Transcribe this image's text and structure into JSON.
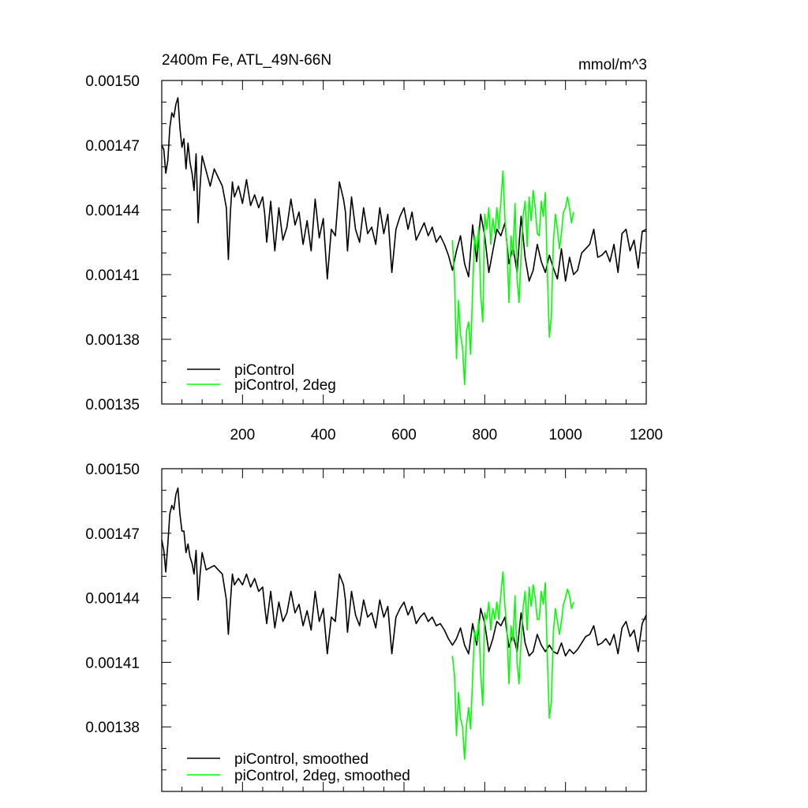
{
  "chart_data": [
    {
      "type": "line",
      "title": "2400m Fe, ATL_49N-66N",
      "units": "mmol/m^3",
      "xlim": [
        0,
        1200
      ],
      "ylim": [
        0.00135,
        0.0015
      ],
      "xticks": [
        200,
        400,
        600,
        800,
        1000,
        1200
      ],
      "xtick_labels": [
        "200",
        "400",
        "600",
        "800",
        "1000",
        "1200"
      ],
      "yticks": [
        0.00135,
        0.00138,
        0.00141,
        0.00144,
        0.00147,
        0.0015
      ],
      "ytick_labels": [
        "0.00135",
        "0.00138",
        "0.00141",
        "0.00144",
        "0.00147",
        "0.00150"
      ],
      "legend_position": "bottom-left",
      "series": [
        {
          "name": "piControl",
          "color": "#000000",
          "x": [
            0,
            5,
            10,
            15,
            20,
            25,
            30,
            35,
            40,
            45,
            50,
            55,
            60,
            65,
            70,
            75,
            80,
            85,
            90,
            95,
            100,
            110,
            120,
            130,
            140,
            150,
            160,
            165,
            170,
            175,
            180,
            190,
            200,
            210,
            220,
            230,
            240,
            250,
            255,
            260,
            270,
            280,
            290,
            300,
            310,
            320,
            330,
            340,
            350,
            360,
            370,
            380,
            390,
            400,
            410,
            420,
            430,
            440,
            450,
            455,
            460,
            470,
            480,
            490,
            500,
            510,
            520,
            530,
            540,
            550,
            560,
            570,
            580,
            590,
            600,
            610,
            620,
            630,
            640,
            650,
            660,
            670,
            680,
            690,
            700,
            710,
            720,
            730,
            740,
            750,
            760,
            770,
            780,
            790,
            800,
            810,
            820,
            830,
            840,
            850,
            860,
            870,
            880,
            890,
            900,
            910,
            920,
            930,
            940,
            950,
            960,
            970,
            980,
            990,
            1000,
            1010,
            1020,
            1030,
            1040,
            1050,
            1060,
            1070,
            1080,
            1090,
            1100,
            1110,
            1120,
            1130,
            1140,
            1150,
            1160,
            1170,
            1180,
            1190,
            1200
          ],
          "y": [
            0.00147,
            0.001468,
            0.001457,
            0.001463,
            0.001478,
            0.001485,
            0.001483,
            0.001489,
            0.001492,
            0.001478,
            0.001469,
            0.001473,
            0.001459,
            0.001471,
            0.001462,
            0.001457,
            0.001449,
            0.001466,
            0.001434,
            0.001451,
            0.001465,
            0.001458,
            0.001451,
            0.001459,
            0.001455,
            0.001451,
            0.001441,
            0.001417,
            0.001439,
            0.001453,
            0.001446,
            0.001451,
            0.001443,
            0.001454,
            0.001442,
            0.001447,
            0.001441,
            0.001446,
            0.001438,
            0.001425,
            0.001444,
            0.001421,
            0.001441,
            0.001426,
            0.001432,
            0.001445,
            0.001433,
            0.001439,
            0.001424,
            0.001435,
            0.001421,
            0.001445,
            0.001427,
            0.001436,
            0.001408,
            0.001431,
            0.001428,
            0.001453,
            0.001445,
            0.001439,
            0.001421,
            0.001446,
            0.001431,
            0.001425,
            0.001441,
            0.001429,
            0.001432,
            0.001424,
            0.001441,
            0.001429,
            0.001438,
            0.001411,
            0.001431,
            0.001437,
            0.001441,
            0.001431,
            0.001439,
            0.001426,
            0.00143,
            0.001434,
            0.001428,
            0.001432,
            0.001425,
            0.001428,
            0.001424,
            0.001419,
            0.001412,
            0.001421,
            0.001428,
            0.001415,
            0.001409,
            0.001433,
            0.001416,
            0.001438,
            0.001428,
            0.001411,
            0.001421,
            0.001431,
            0.001428,
            0.001434,
            0.001415,
            0.001423,
            0.001411,
            0.001437,
            0.001418,
            0.001407,
            0.001412,
            0.001424,
            0.001416,
            0.001411,
            0.001419,
            0.001413,
            0.001408,
            0.001422,
            0.001407,
            0.001418,
            0.00141,
            0.001412,
            0.00142,
            0.001422,
            0.001424,
            0.001431,
            0.001418,
            0.001419,
            0.001421,
            0.001416,
            0.001424,
            0.001411,
            0.001429,
            0.001431,
            0.001421,
            0.001426,
            0.001413,
            0.00143,
            0.001431
          ]
        },
        {
          "name": "piControl, 2deg",
          "color": "#00ff00",
          "x": [
            720,
            725,
            730,
            735,
            740,
            745,
            750,
            755,
            760,
            765,
            770,
            775,
            780,
            785,
            790,
            795,
            800,
            805,
            810,
            815,
            820,
            825,
            830,
            835,
            840,
            845,
            850,
            855,
            860,
            865,
            870,
            875,
            880,
            885,
            890,
            895,
            900,
            905,
            910,
            915,
            920,
            925,
            930,
            935,
            940,
            945,
            950,
            955,
            960,
            965,
            970,
            975,
            980,
            985,
            990,
            995,
            1000,
            1005,
            1010,
            1015,
            1020
          ],
          "y": [
            0.001426,
            0.001408,
            0.001371,
            0.001398,
            0.001382,
            0.001376,
            0.001359,
            0.001384,
            0.001388,
            0.001373,
            0.001403,
            0.001428,
            0.001421,
            0.001432,
            0.001401,
            0.001388,
            0.001438,
            0.001431,
            0.001441,
            0.001424,
            0.001436,
            0.001429,
            0.001441,
            0.001431,
            0.001444,
            0.001458,
            0.001436,
            0.001424,
            0.001397,
            0.001428,
            0.001419,
            0.001443,
            0.001408,
            0.001397,
            0.001419,
            0.001437,
            0.001444,
            0.001423,
            0.001446,
            0.001435,
            0.001449,
            0.001441,
            0.001429,
            0.001428,
            0.001444,
            0.001437,
            0.001448,
            0.001412,
            0.001381,
            0.001391,
            0.001425,
            0.001438,
            0.001431,
            0.001422,
            0.001429,
            0.001439,
            0.001441,
            0.001446,
            0.001441,
            0.001434,
            0.001439
          ]
        }
      ]
    },
    {
      "type": "line",
      "xlim": [
        0,
        1200
      ],
      "ylim": [
        0.00135,
        0.0015
      ],
      "xticks": [
        200,
        400,
        600,
        800,
        1000,
        1200
      ],
      "yticks": [
        0.00138,
        0.00141,
        0.00144,
        0.00147,
        0.0015
      ],
      "ytick_labels": [
        "0.00138",
        "0.00141",
        "0.00144",
        "0.00147",
        "0.00150"
      ],
      "legend_position": "bottom-left",
      "series": [
        {
          "name": "piControl, smoothed",
          "color": "#000000",
          "x": [
            0,
            5,
            10,
            15,
            20,
            25,
            30,
            35,
            40,
            45,
            50,
            55,
            60,
            65,
            70,
            75,
            80,
            85,
            90,
            95,
            100,
            110,
            120,
            130,
            140,
            150,
            160,
            165,
            170,
            175,
            180,
            190,
            200,
            210,
            220,
            230,
            240,
            250,
            255,
            260,
            270,
            280,
            290,
            300,
            310,
            320,
            330,
            340,
            350,
            360,
            370,
            380,
            390,
            400,
            410,
            420,
            430,
            440,
            450,
            455,
            460,
            470,
            480,
            490,
            500,
            510,
            520,
            530,
            540,
            550,
            560,
            570,
            580,
            590,
            600,
            610,
            620,
            630,
            640,
            650,
            660,
            670,
            680,
            690,
            700,
            710,
            720,
            730,
            740,
            750,
            760,
            770,
            780,
            790,
            800,
            810,
            820,
            830,
            840,
            850,
            860,
            870,
            880,
            890,
            900,
            910,
            920,
            930,
            940,
            950,
            960,
            970,
            980,
            990,
            1000,
            1010,
            1020,
            1030,
            1040,
            1050,
            1060,
            1070,
            1080,
            1090,
            1100,
            1110,
            1120,
            1130,
            1140,
            1150,
            1160,
            1170,
            1180,
            1190,
            1200
          ],
          "y": [
            0.001467,
            0.001462,
            0.001452,
            0.001465,
            0.001479,
            0.001483,
            0.001481,
            0.001488,
            0.001491,
            0.001479,
            0.001471,
            0.001471,
            0.001461,
            0.001465,
            0.001459,
            0.001456,
            0.001451,
            0.001462,
            0.001439,
            0.001451,
            0.001461,
            0.001453,
            0.001454,
            0.001455,
            0.001453,
            0.001451,
            0.001439,
            0.001423,
            0.001438,
            0.001451,
            0.001446,
            0.001449,
            0.001446,
            0.001451,
            0.001445,
            0.001449,
            0.001443,
            0.001445,
            0.001436,
            0.001428,
            0.001443,
            0.001426,
            0.001438,
            0.001429,
            0.001433,
            0.001443,
            0.001433,
            0.001437,
            0.001427,
            0.001434,
            0.001425,
            0.001443,
            0.001429,
            0.001435,
            0.001414,
            0.001431,
            0.001429,
            0.001451,
            0.001446,
            0.001439,
            0.001424,
            0.001443,
            0.001432,
            0.001427,
            0.001439,
            0.001431,
            0.001433,
            0.001426,
            0.001439,
            0.001431,
            0.001436,
            0.001414,
            0.001431,
            0.001435,
            0.001438,
            0.001432,
            0.001436,
            0.001428,
            0.001431,
            0.001433,
            0.001429,
            0.001431,
            0.001427,
            0.001428,
            0.001425,
            0.001421,
            0.001418,
            0.001421,
            0.001426,
            0.001418,
            0.001414,
            0.001428,
            0.001418,
            0.001435,
            0.001428,
            0.001415,
            0.001421,
            0.001429,
            0.001427,
            0.001431,
            0.001417,
            0.001423,
            0.001415,
            0.001433,
            0.001419,
            0.001413,
            0.001415,
            0.001423,
            0.001418,
            0.001415,
            0.001418,
            0.001415,
            0.001414,
            0.001419,
            0.001413,
            0.001416,
            0.001414,
            0.001416,
            0.001419,
            0.001422,
            0.001423,
            0.001427,
            0.001418,
            0.001419,
            0.001421,
            0.001418,
            0.001423,
            0.001414,
            0.001426,
            0.001429,
            0.001422,
            0.001425,
            0.001415,
            0.001428,
            0.001432
          ]
        },
        {
          "name": "piControl, 2deg, smoothed",
          "color": "#00ff00",
          "x": [
            720,
            725,
            730,
            735,
            740,
            745,
            750,
            755,
            760,
            765,
            770,
            775,
            780,
            785,
            790,
            795,
            800,
            805,
            810,
            815,
            820,
            825,
            830,
            835,
            840,
            845,
            850,
            855,
            860,
            865,
            870,
            875,
            880,
            885,
            890,
            895,
            900,
            905,
            910,
            915,
            920,
            925,
            930,
            935,
            940,
            945,
            950,
            955,
            960,
            965,
            970,
            975,
            980,
            985,
            990,
            995,
            1000,
            1005,
            1010,
            1015,
            1020
          ],
          "y": [
            0.001413,
            0.001404,
            0.001376,
            0.001396,
            0.001384,
            0.00138,
            0.001365,
            0.001381,
            0.001389,
            0.001379,
            0.001403,
            0.001425,
            0.00142,
            0.00143,
            0.001405,
            0.00139,
            0.001433,
            0.00143,
            0.001438,
            0.001425,
            0.001435,
            0.00143,
            0.001438,
            0.00143,
            0.001442,
            0.001452,
            0.001436,
            0.001426,
            0.0014,
            0.001427,
            0.00142,
            0.001441,
            0.00141,
            0.0014,
            0.00142,
            0.001435,
            0.001443,
            0.001425,
            0.001445,
            0.001436,
            0.001446,
            0.00144,
            0.00143,
            0.00143,
            0.001443,
            0.001437,
            0.001447,
            0.001413,
            0.001384,
            0.001392,
            0.001424,
            0.001435,
            0.001429,
            0.001423,
            0.001429,
            0.001437,
            0.00144,
            0.001444,
            0.001441,
            0.001435,
            0.001438
          ]
        }
      ]
    }
  ]
}
